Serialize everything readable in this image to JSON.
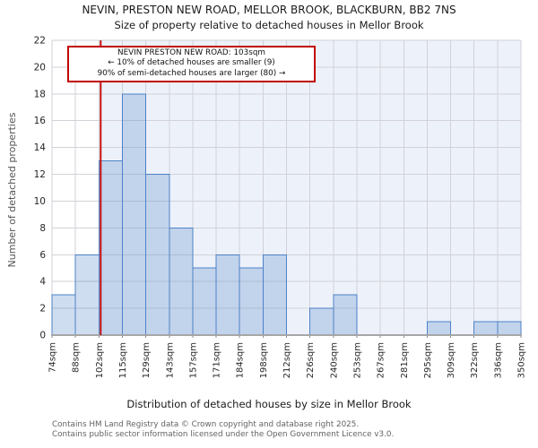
{
  "page": {
    "title": "NEVIN, PRESTON NEW ROAD, MELLOR BROOK, BLACKBURN, BB2 7NS",
    "subtitle": "Size of property relative to detached houses in Mellor Brook"
  },
  "annotation": {
    "lines": [
      "NEVIN PRESTON NEW ROAD: 103sqm",
      "← 10% of detached houses are smaller (9)",
      "90% of semi-detached houses are larger (80) →"
    ],
    "border_color": "#c00000"
  },
  "chart_data": {
    "type": "bar",
    "title": "Size of property relative to detached houses in Mellor Brook",
    "xlabel": "Distribution of detached houses by size in Mellor Brook",
    "ylabel": "Number of detached properties",
    "categories": [
      "74sqm",
      "88sqm",
      "102sqm",
      "115sqm",
      "129sqm",
      "143sqm",
      "157sqm",
      "171sqm",
      "184sqm",
      "198sqm",
      "212sqm",
      "226sqm",
      "240sqm",
      "253sqm",
      "267sqm",
      "281sqm",
      "295sqm",
      "309sqm",
      "322sqm",
      "336sqm",
      "350sqm"
    ],
    "bin_edges": [
      74,
      88,
      102,
      115,
      129,
      143,
      157,
      171,
      184,
      198,
      212,
      226,
      240,
      253,
      267,
      281,
      295,
      309,
      322,
      336,
      350
    ],
    "values": [
      3,
      6,
      13,
      18,
      12,
      8,
      5,
      6,
      5,
      6,
      0,
      2,
      3,
      0,
      0,
      0,
      1,
      0,
      1,
      1
    ],
    "ylim": [
      0,
      22
    ],
    "ytick_step": 2,
    "grid": true,
    "legend": false,
    "marker_value": 103,
    "marker_label": "103sqm",
    "colors": {
      "marker": "#c00000",
      "bar_fill": "rgba(77,130,198,0.27)",
      "bar_stroke": "#4d82c6",
      "shade": "#edf1fa",
      "grid": "#d2d2d8",
      "axis": "#a6a6a6",
      "tick_text": "#262626"
    }
  },
  "footer": {
    "line1": "Contains HM Land Registry data © Crown copyright and database right 2025.",
    "line2": "Contains public sector information licensed under the Open Government Licence v3.0."
  }
}
